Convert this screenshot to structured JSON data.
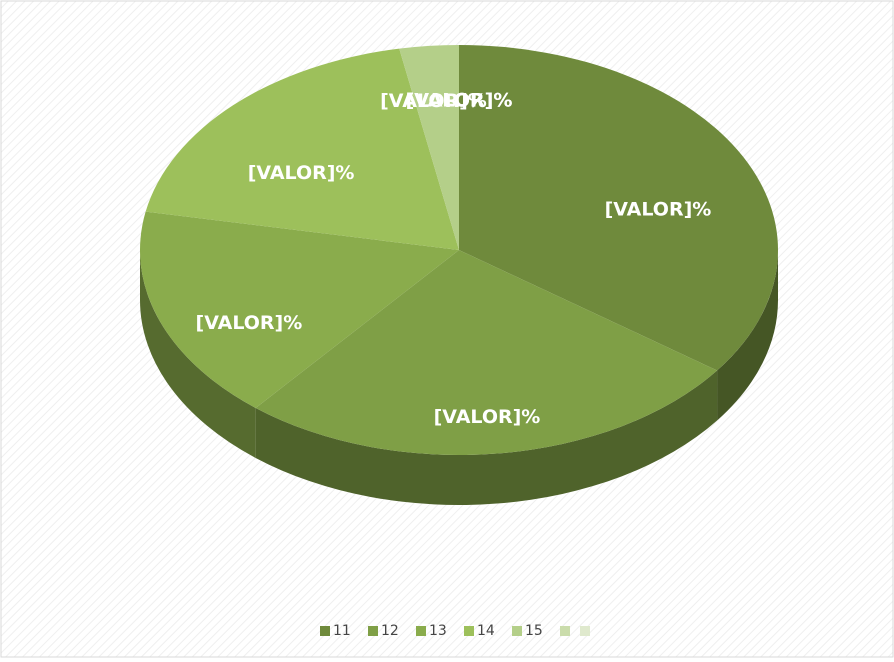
{
  "chart_data": {
    "type": "pie",
    "categories": [
      "11",
      "12",
      "13",
      "14",
      "15",
      null,
      null
    ],
    "values": [
      35,
      26,
      17,
      19,
      3,
      0,
      0
    ],
    "value_labels": [
      "[VALOR]%",
      "[VALOR]%",
      "[VALOR]%",
      "[VALOR]%",
      "[VALOR]%",
      "[VALOR]%",
      "[VALOR]%"
    ],
    "colors": [
      "#6f8a3c",
      "#7f9f46",
      "#8aac4c",
      "#9dc05b",
      "#b4cf89",
      "#cadcab",
      "#dfe9cd"
    ],
    "legend": "bottom"
  }
}
